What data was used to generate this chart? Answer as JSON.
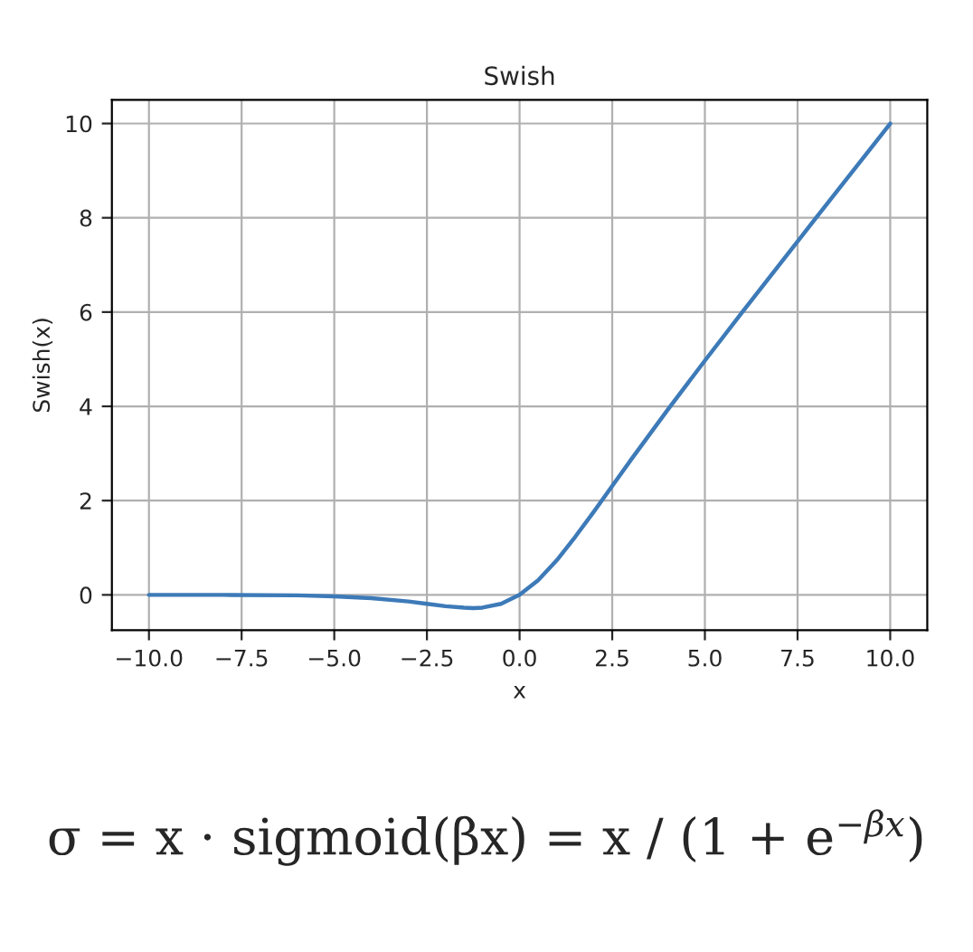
{
  "chart_data": {
    "type": "line",
    "title": "Swish",
    "xlabel": "x",
    "ylabel": "Swish(x)",
    "x": [
      -10,
      -8,
      -6,
      -5,
      -4,
      -3,
      -2.5,
      -2,
      -1.5,
      -1.25,
      -1,
      -0.5,
      0,
      0.5,
      1,
      1.5,
      2,
      2.5,
      3,
      4,
      5,
      6,
      8,
      10
    ],
    "series": [
      {
        "color": "#3d7ab8",
        "values": [
          0.0,
          0.0,
          -0.01,
          -0.03,
          -0.07,
          -0.14,
          -0.19,
          -0.24,
          -0.27,
          -0.28,
          -0.27,
          -0.19,
          0.0,
          0.31,
          0.73,
          1.23,
          1.76,
          2.31,
          2.86,
          3.93,
          4.97,
          5.99,
          8.0,
          10.0
        ]
      }
    ],
    "xlim": [
      -11,
      11
    ],
    "ylim": [
      -0.75,
      10.5
    ],
    "xticks": [
      {
        "value": -10,
        "label": "−10.0"
      },
      {
        "value": -7.5,
        "label": "−7.5"
      },
      {
        "value": -5,
        "label": "−5.0"
      },
      {
        "value": -2.5,
        "label": "−2.5"
      },
      {
        "value": 0,
        "label": "0.0"
      },
      {
        "value": 2.5,
        "label": "2.5"
      },
      {
        "value": 5,
        "label": "5.0"
      },
      {
        "value": 7.5,
        "label": "7.5"
      },
      {
        "value": 10,
        "label": "10.0"
      }
    ],
    "yticks": [
      0,
      2,
      4,
      6,
      8,
      10
    ],
    "grid": true,
    "legend": false,
    "line_style": "solid",
    "marker": "none",
    "annotations": [
      "σ = x · sigmoid(βx) = x / (1 + e$^{−βx}$)"
    ]
  }
}
